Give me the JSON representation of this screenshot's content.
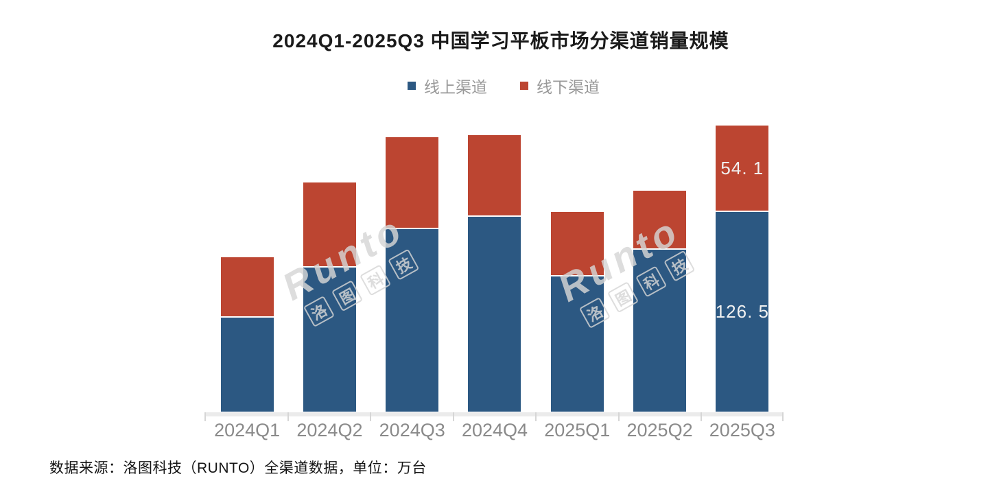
{
  "title": "2024Q1-2025Q3 中国学习平板市场分渠道销量规模",
  "legend": {
    "items": [
      {
        "label": "线上渠道",
        "color": "#2C5882"
      },
      {
        "label": "线下渠道",
        "color": "#BC4531"
      }
    ]
  },
  "footer": {
    "text": "数据来源：洛图科技（RUNTO）全渠道数据，单位：万台"
  },
  "watermark": {
    "brand": "Runto",
    "company_chars": [
      "洛",
      "图",
      "科",
      "技"
    ]
  },
  "chart_data": {
    "type": "bar",
    "stacked": true,
    "title": "2024Q1-2025Q3 中国学习平板市场分渠道销量规模",
    "unit": "万台",
    "categories": [
      "2024Q1",
      "2024Q2",
      "2024Q3",
      "2024Q4",
      "2025Q1",
      "2025Q2",
      "2025Q3"
    ],
    "series": [
      {
        "name": "线上渠道",
        "key": "online",
        "color": "#2C5882",
        "values": [
          59.6,
          91.3,
          115.7,
          123.5,
          85.7,
          102.6,
          126.5
        ],
        "value_labels": [
          "",
          "",
          "",
          "",
          "",
          "",
          "126. 5"
        ]
      },
      {
        "name": "线下渠道",
        "key": "offline",
        "color": "#BC4531",
        "values": [
          37.4,
          53.0,
          57.4,
          50.9,
          40.0,
          36.5,
          54.1
        ],
        "value_labels": [
          "",
          "",
          "",
          "",
          "",
          "",
          "54. 1"
        ]
      }
    ],
    "totals": [
      97.0,
      144.3,
      173.1,
      174.4,
      125.7,
      139.1,
      180.6
    ],
    "ylim": [
      0,
      190
    ],
    "grid": false,
    "y_axis_visible": false,
    "legend_position": "top",
    "value_label_color": "#f0f0f0"
  }
}
